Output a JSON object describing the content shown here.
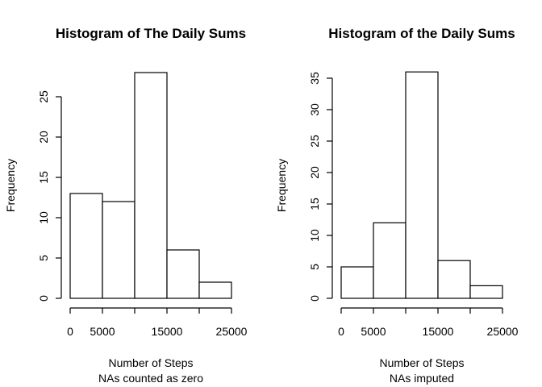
{
  "chart_data": [
    {
      "type": "bar",
      "title": "Histogram of The Daily Sums",
      "xlabel": "Number of Steps",
      "subtitle": "NAs counted as zero",
      "ylabel": "Frequency",
      "bins": [
        [
          0,
          5000
        ],
        [
          5000,
          10000
        ],
        [
          10000,
          15000
        ],
        [
          15000,
          20000
        ],
        [
          20000,
          25000
        ]
      ],
      "values": [
        13,
        12,
        28,
        6,
        2
      ],
      "xlim": [
        0,
        25000
      ],
      "ylim": [
        0,
        29
      ],
      "x_ticks": [
        0,
        5000,
        10000,
        15000,
        20000,
        25000
      ],
      "x_tick_labels": [
        "0",
        "5000",
        "",
        "15000",
        "",
        "25000"
      ],
      "y_ticks": [
        0,
        5,
        10,
        15,
        20,
        25
      ],
      "y_tick_labels": [
        "0",
        "5",
        "10",
        "15",
        "20",
        "25"
      ],
      "grid": false
    },
    {
      "type": "bar",
      "title": "Histogram of the Daily Sums",
      "xlabel": "Number of Steps",
      "subtitle": "NAs imputed",
      "ylabel": "Frequency",
      "bins": [
        [
          0,
          5000
        ],
        [
          5000,
          10000
        ],
        [
          10000,
          15000
        ],
        [
          15000,
          20000
        ],
        [
          20000,
          25000
        ]
      ],
      "values": [
        5,
        12,
        36,
        6,
        2
      ],
      "xlim": [
        0,
        25000
      ],
      "ylim": [
        0,
        37
      ],
      "x_ticks": [
        0,
        5000,
        10000,
        15000,
        20000,
        25000
      ],
      "x_tick_labels": [
        "0",
        "5000",
        "",
        "15000",
        "",
        "25000"
      ],
      "y_ticks": [
        0,
        5,
        10,
        15,
        20,
        25,
        30,
        35
      ],
      "y_tick_labels": [
        "0",
        "5",
        "10",
        "15",
        "20",
        "25",
        "30",
        "35"
      ],
      "grid": false
    }
  ]
}
